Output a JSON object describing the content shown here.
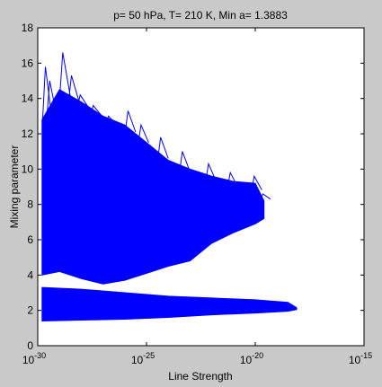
{
  "chart_data": {
    "type": "line",
    "title": "p= 50 hPa,  T= 210 K, Min a= 1.3883",
    "xlabel": "Line Strength",
    "ylabel": "Mixing parameter",
    "xscale": "log",
    "xlim_exponent": [
      -30,
      -15
    ],
    "ylim": [
      0,
      18
    ],
    "x_ticks": [
      {
        "base": "10",
        "exp": "-30"
      },
      {
        "base": "10",
        "exp": "-25"
      },
      {
        "base": "10",
        "exp": "-20"
      },
      {
        "base": "10",
        "exp": "-15"
      }
    ],
    "y_ticks": [
      "0",
      "2",
      "4",
      "6",
      "8",
      "10",
      "12",
      "14",
      "16",
      "18"
    ],
    "grid": false,
    "legend": "none",
    "series_color": "#0000ff",
    "upper_band_outline": [
      {
        "log_x": -29.8,
        "y_lo": 4.0,
        "y_hi": 12.8
      },
      {
        "log_x": -29.0,
        "y_lo": 4.2,
        "y_hi": 14.5
      },
      {
        "log_x": -28.0,
        "y_lo": 3.8,
        "y_hi": 13.8
      },
      {
        "log_x": -27.0,
        "y_lo": 3.5,
        "y_hi": 13.0
      },
      {
        "log_x": -26.0,
        "y_lo": 3.7,
        "y_hi": 12.5
      },
      {
        "log_x": -25.0,
        "y_lo": 4.1,
        "y_hi": 11.5
      },
      {
        "log_x": -24.0,
        "y_lo": 4.5,
        "y_hi": 10.5
      },
      {
        "log_x": -23.0,
        "y_lo": 4.8,
        "y_hi": 10.0
      },
      {
        "log_x": -22.0,
        "y_lo": 5.8,
        "y_hi": 9.6
      },
      {
        "log_x": -21.0,
        "y_lo": 6.4,
        "y_hi": 9.3
      },
      {
        "log_x": -20.0,
        "y_lo": 6.9,
        "y_hi": 9.2
      },
      {
        "log_x": -19.6,
        "y_lo": 7.2,
        "y_hi": 8.2
      }
    ],
    "lower_band_outline": [
      {
        "log_x": -29.8,
        "y_lo": 1.4,
        "y_hi": 3.3
      },
      {
        "log_x": -28.0,
        "y_lo": 1.45,
        "y_hi": 3.2
      },
      {
        "log_x": -26.0,
        "y_lo": 1.5,
        "y_hi": 3.0
      },
      {
        "log_x": -24.0,
        "y_lo": 1.6,
        "y_hi": 2.8
      },
      {
        "log_x": -22.0,
        "y_lo": 1.75,
        "y_hi": 2.7
      },
      {
        "log_x": -20.0,
        "y_lo": 1.85,
        "y_hi": 2.6
      },
      {
        "log_x": -18.5,
        "y_lo": 1.95,
        "y_hi": 2.45
      },
      {
        "log_x": -18.1,
        "y_lo": 2.05,
        "y_hi": 2.15
      }
    ],
    "spikes": [
      {
        "log_x": -29.8,
        "y": 15.8
      },
      {
        "log_x": -29.6,
        "y": 15.0
      },
      {
        "log_x": -29.0,
        "y": 16.6
      },
      {
        "log_x": -28.6,
        "y": 15.3
      },
      {
        "log_x": -28.2,
        "y": 14.2
      },
      {
        "log_x": -27.6,
        "y": 13.6
      },
      {
        "log_x": -26.9,
        "y": 13.0
      },
      {
        "log_x": -26.0,
        "y": 13.3
      },
      {
        "log_x": -25.4,
        "y": 12.5
      },
      {
        "log_x": -24.5,
        "y": 11.8
      },
      {
        "log_x": -23.5,
        "y": 11.0
      },
      {
        "log_x": -22.3,
        "y": 10.3
      },
      {
        "log_x": -21.3,
        "y": 9.8
      },
      {
        "log_x": -20.2,
        "y": 9.6
      },
      {
        "log_x": -19.8,
        "y": 8.6
      }
    ]
  }
}
